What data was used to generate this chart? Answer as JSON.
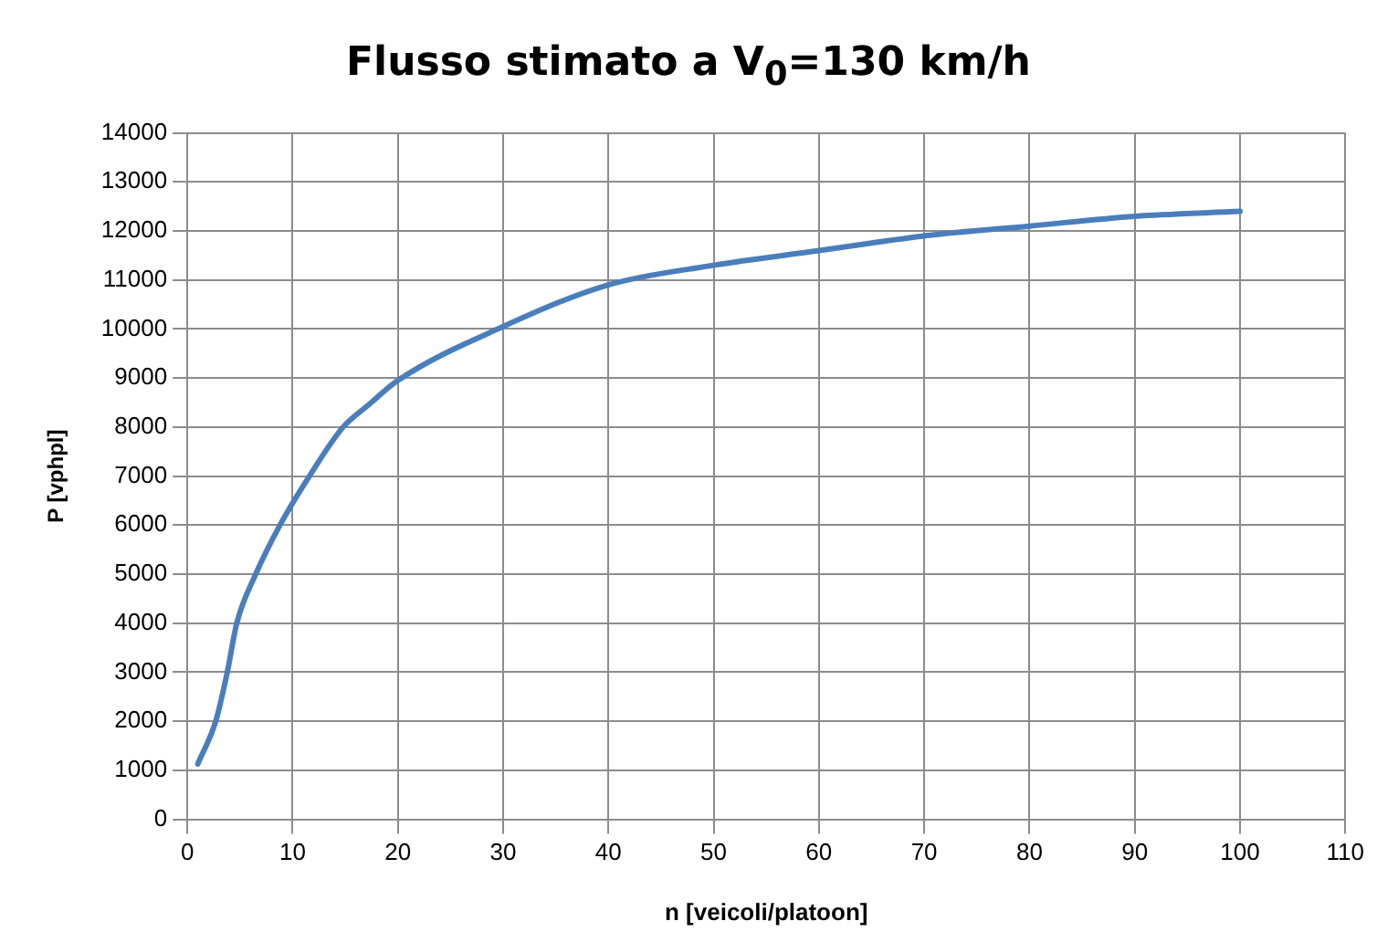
{
  "chart_data": {
    "type": "line",
    "title": "Flusso stimato a V$_{0}$=130 km/h",
    "xlabel": "n [veicoli/platoon]",
    "ylabel": "P [vphpl]",
    "x": [
      1,
      2.7,
      3.8,
      4.7,
      6.5,
      8.8,
      11.6,
      14.8,
      17.2,
      20,
      30,
      40,
      50,
      60,
      70,
      80,
      90,
      100
    ],
    "series": [
      {
        "color": "#4a7ebb",
        "values": [
          1130,
          2000,
          3000,
          4000,
          5000,
          6000,
          7000,
          8000,
          8450,
          8950,
          10050,
          10900,
          11300,
          11600,
          11900,
          12100,
          12300,
          12400
        ]
      }
    ],
    "xlim": [
      0,
      110
    ],
    "xticks": [
      0,
      10,
      20,
      30,
      40,
      50,
      60,
      70,
      80,
      90,
      100,
      110
    ],
    "ylim": [
      0,
      14000
    ],
    "yticks": [
      0,
      1000,
      2000,
      3000,
      4000,
      5000,
      6000,
      7000,
      8000,
      9000,
      10000,
      11000,
      12000,
      13000,
      14000
    ],
    "grid": true,
    "marker": "none",
    "line_style": "solid"
  }
}
